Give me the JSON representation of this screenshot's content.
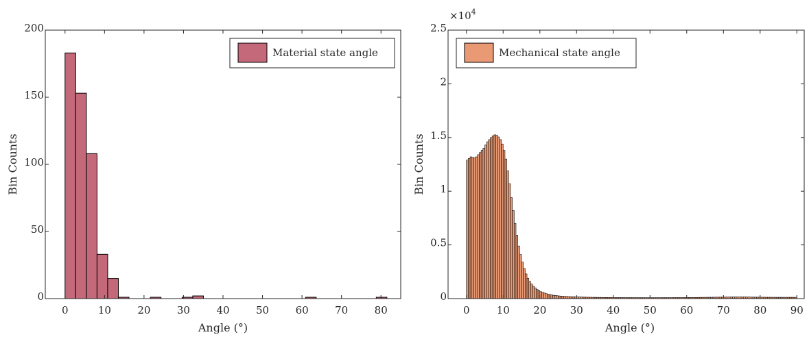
{
  "chart_data": [
    {
      "type": "bar",
      "bin_width": 2.7,
      "x": [
        1.35,
        4.05,
        6.75,
        9.45,
        12.15,
        14.85,
        17.55,
        20.25,
        22.95,
        30.99,
        33.69,
        62.25,
        80.15
      ],
      "values": [
        183,
        153,
        108,
        33,
        15,
        1,
        0,
        0,
        1,
        1,
        2,
        1,
        1
      ],
      "xlabel": "Angle (°)",
      "ylabel": "Bin Counts",
      "xlim": [
        -5,
        85
      ],
      "ylim": [
        0,
        200
      ],
      "xticks": [
        0,
        10,
        20,
        30,
        40,
        50,
        60,
        70,
        80
      ],
      "yticks": [
        0,
        50,
        100,
        150,
        200
      ],
      "legend": "Material state angle",
      "legend_position": "top-right",
      "bar_color": "#c4697a",
      "edge_color": "#000000"
    },
    {
      "type": "bar",
      "bin_width": 0.5,
      "x0": 0,
      "values": [
        12900,
        13050,
        13200,
        13150,
        13100,
        13200,
        13400,
        13600,
        13800,
        14000,
        14300,
        14600,
        14800,
        15000,
        15150,
        15250,
        15200,
        15050,
        14800,
        14400,
        13800,
        13000,
        11900,
        10700,
        9400,
        8200,
        7000,
        5900,
        4900,
        4100,
        3400,
        2800,
        2300,
        1900,
        1600,
        1350,
        1150,
        1000,
        850,
        750,
        650,
        580,
        520,
        460,
        410,
        370,
        340,
        310,
        290,
        270,
        250,
        235,
        220,
        210,
        200,
        190,
        180,
        172,
        165,
        160,
        155,
        150,
        145,
        140,
        136,
        132,
        128,
        125,
        122,
        120,
        118,
        116,
        114,
        112,
        110,
        108,
        106,
        104,
        102,
        100,
        98,
        97,
        96,
        95,
        94,
        93,
        92,
        91,
        90,
        89,
        88,
        88,
        87,
        87,
        86,
        86,
        85,
        85,
        85,
        85,
        85,
        85,
        85,
        86,
        86,
        87,
        87,
        88,
        88,
        89,
        90,
        91,
        92,
        93,
        94,
        95,
        96,
        97,
        98,
        99,
        100,
        102,
        104,
        106,
        108,
        110,
        112,
        114,
        116,
        118,
        120,
        122,
        124,
        126,
        128,
        130,
        132,
        134,
        136,
        138,
        140,
        142,
        144,
        146,
        148,
        150,
        150,
        150,
        150,
        150,
        150,
        148,
        146,
        144,
        142,
        140,
        138,
        136,
        134,
        132,
        130,
        128,
        127,
        126,
        125,
        124,
        123,
        122,
        121,
        120,
        120,
        120,
        120,
        120,
        120,
        120,
        120,
        120,
        120,
        120
      ],
      "xlabel": "Angle (°)",
      "ylabel": "Bin Counts",
      "exponent": "×10",
      "exponent_power": "4",
      "xlim": [
        -5,
        92
      ],
      "ylim": [
        0,
        25000
      ],
      "xticks": [
        0,
        10,
        20,
        30,
        40,
        50,
        60,
        70,
        80,
        90
      ],
      "yticks": [
        0,
        5000,
        10000,
        15000,
        20000,
        25000
      ],
      "ytick_labels": [
        "0",
        "0.5",
        "1",
        "1.5",
        "2",
        "2.5"
      ],
      "legend": "Mechanical state angle",
      "legend_position": "top-left",
      "bar_color": "#e99a74",
      "edge_color": "#000000"
    }
  ]
}
